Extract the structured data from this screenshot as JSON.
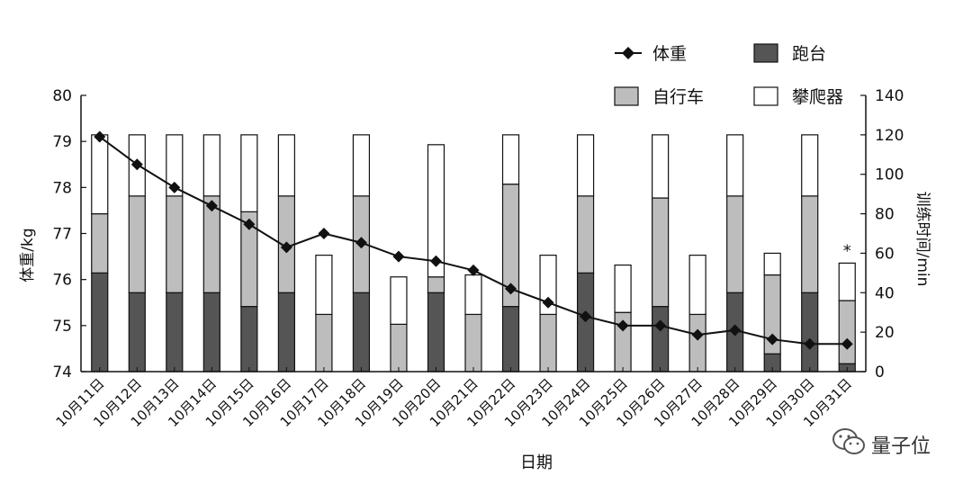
{
  "chart_data": {
    "type": "bar",
    "stacked": true,
    "title": "",
    "xlabel": "日期",
    "ylabel_left": "体重/kg",
    "ylabel_right": "训练时间/min",
    "ylim_left": [
      74,
      80
    ],
    "ylim_right": [
      0,
      140
    ],
    "yticks_left": [
      "74",
      "75",
      "76",
      "77",
      "78",
      "79",
      "80"
    ],
    "yticks_right": [
      "0",
      "20",
      "40",
      "60",
      "80",
      "100",
      "120",
      "140"
    ],
    "categories": [
      "10月11日",
      "10月12日",
      "10月13日",
      "10月14日",
      "10月15日",
      "10月16日",
      "10月17日",
      "10月18日",
      "10月19日",
      "10月20日",
      "10月21日",
      "10月22日",
      "10月23日",
      "10月24日",
      "10月25日",
      "10月26日",
      "10月27日",
      "10月28日",
      "10月29日",
      "10月30日",
      "10月31日"
    ],
    "series": [
      {
        "name": "跑台",
        "axis": "right",
        "color": "#555555",
        "values": [
          50,
          40,
          40,
          40,
          33,
          40,
          0,
          40,
          0,
          40,
          0,
          33,
          0,
          50,
          0,
          33,
          0,
          40,
          9,
          40,
          4
        ]
      },
      {
        "name": "自行车",
        "axis": "right",
        "color": "#bdbdbd",
        "values": [
          30,
          49,
          49,
          49,
          48,
          49,
          29,
          49,
          24,
          8,
          29,
          62,
          29,
          39,
          30,
          55,
          29,
          49,
          40,
          49,
          32
        ]
      },
      {
        "name": "攀爬器",
        "axis": "right",
        "color": "#ffffff",
        "values": [
          40,
          31,
          31,
          31,
          39,
          31,
          30,
          31,
          24,
          67,
          20,
          25,
          30,
          31,
          24,
          32,
          30,
          31,
          11,
          31,
          19
        ]
      },
      {
        "name": "体重",
        "axis": "left",
        "type": "line",
        "marker": "diamond",
        "color": "#111111",
        "values": [
          79.1,
          78.5,
          78.0,
          77.6,
          77.2,
          76.7,
          77.0,
          76.8,
          76.5,
          76.4,
          76.2,
          75.8,
          75.5,
          75.2,
          75.0,
          75.0,
          74.8,
          74.9,
          74.7,
          74.6,
          74.6
        ]
      }
    ],
    "legend": {
      "position": "top-right",
      "entries": [
        {
          "label": "体重",
          "kind": "line-diamond"
        },
        {
          "label": "跑台",
          "kind": "box",
          "color": "#555555"
        },
        {
          "label": "自行车",
          "kind": "box",
          "color": "#bdbdbd"
        },
        {
          "label": "攀爬器",
          "kind": "box",
          "color": "#ffffff"
        }
      ]
    },
    "annotations": [
      {
        "category": "10月31日",
        "text": "*"
      }
    ],
    "grid": false
  },
  "watermark": {
    "text": "量子位",
    "icon": "wechat-icon"
  }
}
